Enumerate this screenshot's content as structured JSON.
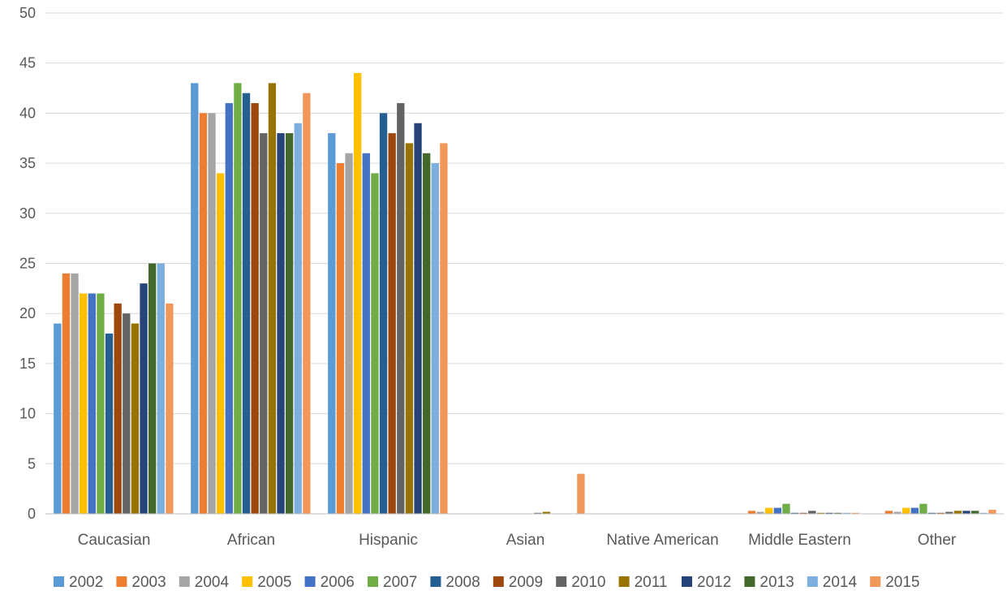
{
  "chart_data": {
    "type": "bar",
    "title": "",
    "xlabel": "",
    "ylabel": "",
    "ylim": [
      0,
      50
    ],
    "yticks": [
      0,
      5,
      10,
      15,
      20,
      25,
      30,
      35,
      40,
      45,
      50
    ],
    "grid": true,
    "legend_position": "bottom",
    "categories": [
      "Caucasian",
      "African",
      "Hispanic",
      "Asian",
      "Native American",
      "Middle Eastern",
      "Other"
    ],
    "series": [
      {
        "name": "2002",
        "color": "#5b9bd5",
        "values": [
          19,
          43,
          38,
          0,
          0,
          0,
          0
        ]
      },
      {
        "name": "2003",
        "color": "#ed7d31",
        "values": [
          24,
          40,
          35,
          0,
          0,
          0.3,
          0.3
        ]
      },
      {
        "name": "2004",
        "color": "#a5a5a5",
        "values": [
          24,
          40,
          36,
          0,
          0,
          0.2,
          0.2
        ]
      },
      {
        "name": "2005",
        "color": "#ffc000",
        "values": [
          22,
          34,
          44,
          0,
          0,
          0.6,
          0.6
        ]
      },
      {
        "name": "2006",
        "color": "#4472c4",
        "values": [
          22,
          41,
          36,
          0,
          0,
          0.6,
          0.6
        ]
      },
      {
        "name": "2007",
        "color": "#70ad47",
        "values": [
          22,
          43,
          34,
          0,
          0,
          1,
          1
        ]
      },
      {
        "name": "2008",
        "color": "#255e91",
        "values": [
          18,
          42,
          40,
          0,
          0,
          0.1,
          0.1
        ]
      },
      {
        "name": "2009",
        "color": "#9e480e",
        "values": [
          21,
          41,
          38,
          0,
          0,
          0.1,
          0.1
        ]
      },
      {
        "name": "2010",
        "color": "#636363",
        "values": [
          20,
          38,
          41,
          0.1,
          0,
          0.3,
          0.2
        ]
      },
      {
        "name": "2011",
        "color": "#997300",
        "values": [
          19,
          43,
          37,
          0.2,
          0,
          0.1,
          0.3
        ]
      },
      {
        "name": "2012",
        "color": "#264478",
        "values": [
          23,
          38,
          39,
          0,
          0,
          0.1,
          0.3
        ]
      },
      {
        "name": "2013",
        "color": "#43682b",
        "values": [
          25,
          38,
          36,
          0,
          0,
          0.1,
          0.3
        ]
      },
      {
        "name": "2014",
        "color": "#7cafdd",
        "values": [
          25,
          39,
          35,
          0,
          0,
          0.1,
          0.1
        ]
      },
      {
        "name": "2015",
        "color": "#f1975a",
        "values": [
          21,
          42,
          37,
          4,
          0,
          0.1,
          0.4
        ]
      }
    ]
  }
}
